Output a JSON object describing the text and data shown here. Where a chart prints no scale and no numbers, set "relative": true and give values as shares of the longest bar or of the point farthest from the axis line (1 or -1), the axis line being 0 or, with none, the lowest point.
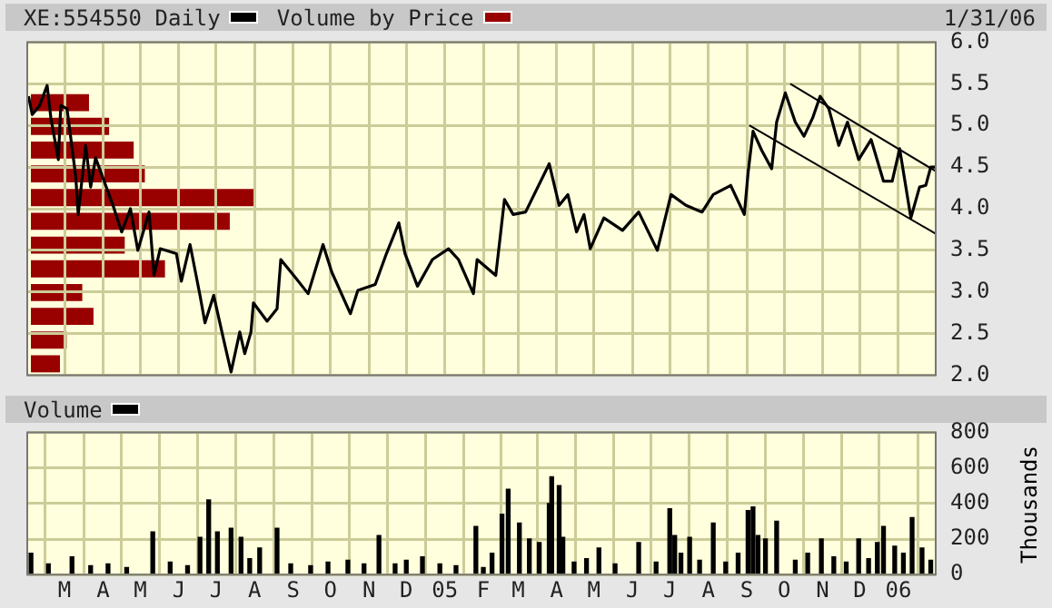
{
  "chart_data": [
    {
      "type": "line",
      "annotations": [
        "1/31/06"
      ],
      "legend": "top left",
      "grid": true,
      "tick_labels": "y",
      "marker": "none",
      "xlim": [
        "2004-01-31",
        "2006-01-31"
      ],
      "ylim": [
        2,
        6
      ],
      "xticks": [
        {
          "value": "2004-03-01",
          "label": null
        },
        {
          "value": "2004-04-01",
          "label": null
        },
        {
          "value": "2004-05-01",
          "label": null
        },
        {
          "value": "2004-06-01",
          "label": null
        },
        {
          "value": "2004-07-01",
          "label": null
        },
        {
          "value": "2004-08-01",
          "label": null
        },
        {
          "value": "2004-09-01",
          "label": null
        },
        {
          "value": "2004-10-01",
          "label": null
        },
        {
          "value": "2004-11-01",
          "label": null
        },
        {
          "value": "2004-12-01",
          "label": null
        },
        {
          "value": "2005-01-01",
          "label": null
        },
        {
          "value": "2005-02-01",
          "label": null
        },
        {
          "value": "2005-03-01",
          "label": null
        },
        {
          "value": "2005-04-01",
          "label": null
        },
        {
          "value": "2005-05-01",
          "label": null
        },
        {
          "value": "2005-06-01",
          "label": null
        },
        {
          "value": "2005-07-01",
          "label": null
        },
        {
          "value": "2005-08-01",
          "label": null
        },
        {
          "value": "2005-09-01",
          "label": null
        },
        {
          "value": "2005-10-01",
          "label": null
        },
        {
          "value": "2005-11-01",
          "label": null
        },
        {
          "value": "2005-12-01",
          "label": null
        },
        {
          "value": "2006-01-01",
          "label": null
        }
      ],
      "yticks": [
        {
          "value": 2,
          "label": "2.0"
        },
        {
          "value": 2.5,
          "label": "2.5"
        },
        {
          "value": 3,
          "label": "3.0"
        },
        {
          "value": 3.5,
          "label": "3.5"
        },
        {
          "value": 4,
          "label": "4.0"
        },
        {
          "value": 4.5,
          "label": "4.5"
        },
        {
          "value": 5,
          "label": "5.0"
        },
        {
          "value": 5.5,
          "label": "5.5"
        },
        {
          "value": 6,
          "label": "6.0"
        }
      ],
      "series": [
        {
          "name": "XE:554550 Daily",
          "type": "line",
          "color": "#000000",
          "x": [
            "2004-02-01",
            "2004-02-04",
            "2004-02-10",
            "2004-02-16",
            "2004-02-19",
            "2004-02-25",
            "2004-02-27",
            "2004-03-03",
            "2004-03-10",
            "2004-03-12",
            "2004-03-18",
            "2004-03-22",
            "2004-03-26",
            "2004-04-09",
            "2004-04-16",
            "2004-04-23",
            "2004-04-29",
            "2004-05-08",
            "2004-05-12",
            "2004-05-17",
            "2004-05-30",
            "2004-06-03",
            "2004-06-10",
            "2004-06-18",
            "2004-06-22",
            "2004-06-29",
            "2004-07-07",
            "2004-07-13",
            "2004-07-20",
            "2004-07-24",
            "2004-07-29",
            "2004-07-31",
            "2004-08-11",
            "2004-08-19",
            "2004-08-22",
            "2004-09-03",
            "2004-09-13",
            "2004-09-25",
            "2004-10-02",
            "2004-10-17",
            "2004-10-23",
            "2004-11-06",
            "2004-11-15",
            "2004-11-25",
            "2004-11-30",
            "2004-12-10",
            "2004-12-22",
            "2005-01-04",
            "2005-01-12",
            "2005-01-24",
            "2005-01-27",
            "2005-02-11",
            "2005-02-18",
            "2005-02-25",
            "2005-03-07",
            "2005-03-26",
            "2005-04-03",
            "2005-04-10",
            "2005-04-17",
            "2005-04-23",
            "2005-04-28",
            "2005-05-09",
            "2005-05-24",
            "2005-06-06",
            "2005-06-21",
            "2005-07-02",
            "2005-07-14",
            "2005-07-27",
            "2005-08-05",
            "2005-08-19",
            "2005-08-30",
            "2005-09-02",
            "2005-09-06",
            "2005-09-13",
            "2005-09-21",
            "2005-09-25",
            "2005-10-02",
            "2005-10-10",
            "2005-10-17",
            "2005-10-24",
            "2005-10-30",
            "2005-11-06",
            "2005-11-14",
            "2005-11-21",
            "2005-11-30",
            "2005-12-10",
            "2005-12-20",
            "2005-12-27",
            "2006-01-02",
            "2006-01-11",
            "2006-01-18",
            "2006-01-23",
            "2006-01-27",
            "2006-01-31"
          ],
          "values": [
            5.35,
            5.13,
            5.24,
            5.48,
            5.09,
            4.59,
            5.24,
            5.2,
            4.39,
            3.93,
            4.76,
            4.26,
            4.61,
            4.04,
            3.72,
            4.0,
            3.5,
            3.96,
            3.2,
            3.52,
            3.46,
            3.13,
            3.57,
            2.96,
            2.63,
            2.96,
            2.43,
            2.04,
            2.52,
            2.26,
            2.52,
            2.87,
            2.65,
            2.8,
            3.39,
            3.17,
            2.98,
            3.57,
            3.24,
            2.74,
            3.02,
            3.09,
            3.46,
            3.83,
            3.46,
            3.07,
            3.39,
            3.52,
            3.39,
            2.98,
            3.39,
            3.2,
            4.11,
            3.93,
            3.96,
            4.54,
            4.04,
            4.17,
            3.72,
            3.93,
            3.52,
            3.89,
            3.74,
            3.96,
            3.5,
            4.17,
            4.04,
            3.96,
            4.17,
            4.28,
            3.93,
            4.43,
            4.93,
            4.7,
            4.48,
            5.04,
            5.39,
            5.04,
            4.87,
            5.09,
            5.35,
            5.2,
            4.76,
            5.04,
            4.59,
            4.83,
            4.33,
            4.33,
            4.72,
            3.89,
            4.26,
            4.28,
            4.5,
            4.5
          ]
        },
        {
          "type": "line",
          "color": "#000000",
          "x": [
            "2005-10-06",
            "2006-01-31"
          ],
          "values": [
            5.5,
            4.45
          ]
        },
        {
          "type": "line",
          "color": "#000000",
          "x": [
            "2005-09-03",
            "2006-01-31"
          ],
          "values": [
            5.0,
            3.7
          ]
        }
      ]
    },
    {
      "type": "bar",
      "orientation": "horizontal",
      "relative": true,
      "legend": "top right",
      "categories": [
        null,
        null,
        null,
        null,
        null,
        null,
        null,
        null,
        null,
        null,
        null,
        null
      ],
      "series": [
        {
          "name": "Volume by Price",
          "color": "#990000",
          "values": [
            0.26,
            0.35,
            0.46,
            0.51,
            1,
            0.89,
            0.42,
            0.6,
            0.23,
            0.28,
            0.16,
            0.13
          ]
        }
      ]
    },
    {
      "type": "bar",
      "ylabel": "Thousands",
      "legend": "top left",
      "grid": true,
      "xlim": [
        "2004-01-31",
        "2006-01-31"
      ],
      "ylim": [
        0,
        800
      ],
      "yticks": [
        0,
        200,
        400,
        600,
        800
      ],
      "xticks": [
        {
          "value": "2004-03-01",
          "label": "M"
        },
        {
          "value": "2004-04-01",
          "label": "A"
        },
        {
          "value": "2004-05-01",
          "label": "M"
        },
        {
          "value": "2004-06-01",
          "label": "J"
        },
        {
          "value": "2004-07-01",
          "label": "J"
        },
        {
          "value": "2004-08-01",
          "label": "A"
        },
        {
          "value": "2004-09-01",
          "label": "S"
        },
        {
          "value": "2004-10-01",
          "label": "O"
        },
        {
          "value": "2004-11-01",
          "label": "N"
        },
        {
          "value": "2004-12-01",
          "label": "D"
        },
        {
          "value": "2005-01-01",
          "label": "05"
        },
        {
          "value": "2005-02-01",
          "label": "F"
        },
        {
          "value": "2005-03-01",
          "label": "M"
        },
        {
          "value": "2005-04-01",
          "label": "A"
        },
        {
          "value": "2005-05-01",
          "label": "M"
        },
        {
          "value": "2005-06-01",
          "label": "J"
        },
        {
          "value": "2005-07-01",
          "label": "J"
        },
        {
          "value": "2005-08-01",
          "label": "A"
        },
        {
          "value": "2005-09-01",
          "label": "S"
        },
        {
          "value": "2005-10-01",
          "label": "O"
        },
        {
          "value": "2005-11-01",
          "label": "N"
        },
        {
          "value": "2005-12-01",
          "label": "D"
        },
        {
          "value": "2006-01-01",
          "label": "06"
        }
      ],
      "series": [
        {
          "name": "Volume",
          "color": "#000000",
          "x": [
            "2004-02-03",
            "2004-02-17",
            "2004-03-07",
            "2004-03-22",
            "2004-04-05",
            "2004-04-20",
            "2004-05-11",
            "2004-05-25",
            "2004-06-08",
            "2004-06-18",
            "2004-06-25",
            "2004-07-02",
            "2004-07-13",
            "2004-07-21",
            "2004-07-28",
            "2004-08-05",
            "2004-08-19",
            "2004-08-30",
            "2004-09-15",
            "2004-09-29",
            "2004-10-15",
            "2004-10-28",
            "2004-11-09",
            "2004-11-22",
            "2004-12-01",
            "2004-12-14",
            "2004-12-28",
            "2005-01-10",
            "2005-01-26",
            "2005-02-01",
            "2005-02-08",
            "2005-02-16",
            "2005-02-21",
            "2005-03-02",
            "2005-03-10",
            "2005-03-18",
            "2005-03-26",
            "2005-03-28",
            "2005-04-03",
            "2005-04-06",
            "2005-04-15",
            "2005-04-25",
            "2005-05-05",
            "2005-05-18",
            "2005-06-06",
            "2005-06-20",
            "2005-07-01",
            "2005-07-05",
            "2005-07-10",
            "2005-07-17",
            "2005-07-25",
            "2005-08-05",
            "2005-08-15",
            "2005-08-25",
            "2005-09-02",
            "2005-09-06",
            "2005-09-10",
            "2005-09-16",
            "2005-09-25",
            "2005-10-10",
            "2005-10-20",
            "2005-10-31",
            "2005-11-10",
            "2005-11-20",
            "2005-11-30",
            "2005-12-08",
            "2005-12-15",
            "2005-12-20",
            "2005-12-29",
            "2006-01-05",
            "2006-01-12",
            "2006-01-20",
            "2006-01-27"
          ],
          "values": [
            120,
            60,
            100,
            50,
            60,
            40,
            240,
            70,
            50,
            210,
            420,
            240,
            260,
            210,
            90,
            150,
            260,
            60,
            50,
            70,
            80,
            60,
            220,
            60,
            80,
            100,
            60,
            50,
            270,
            40,
            120,
            340,
            480,
            290,
            200,
            180,
            400,
            550,
            500,
            210,
            70,
            90,
            150,
            60,
            180,
            70,
            370,
            220,
            120,
            210,
            80,
            290,
            70,
            120,
            360,
            380,
            220,
            200,
            300,
            80,
            120,
            200,
            100,
            70,
            200,
            90,
            180,
            270,
            160,
            120,
            320,
            150,
            80
          ]
        }
      ]
    }
  ]
}
